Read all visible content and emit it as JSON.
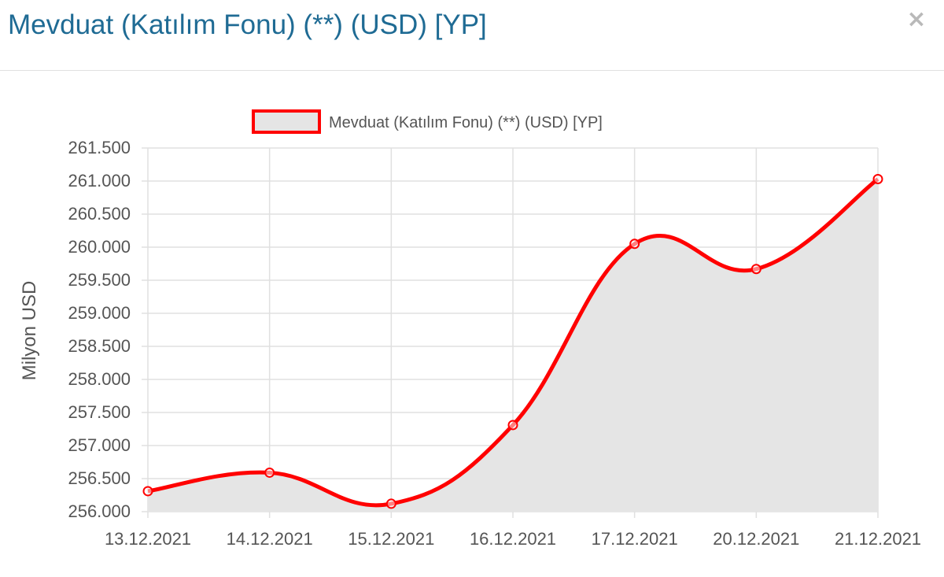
{
  "modal": {
    "title": "Mevduat (Katılım Fonu) (**) (USD) [YP]",
    "close_label": "×",
    "close_icon": "close-icon"
  },
  "colors": {
    "title": "#1f6b94",
    "line": "#ff0000",
    "fill": "#e5e5e5",
    "grid": "#e0e0e0",
    "axis_text": "#555555"
  },
  "chart_data": {
    "type": "area",
    "title": "",
    "ylabel": "Milyon USD",
    "xlabel": "",
    "categories": [
      "13.12.2021",
      "14.12.2021",
      "15.12.2021",
      "16.12.2021",
      "17.12.2021",
      "20.12.2021",
      "21.12.2021"
    ],
    "series": [
      {
        "name": "Mevduat (Katılım Fonu) (**) (USD) [YP]",
        "values": [
          256310,
          256590,
          256120,
          257310,
          260050,
          259670,
          261030
        ]
      }
    ],
    "ylim": [
      256000,
      261500
    ],
    "yticks": [
      256000,
      256500,
      257000,
      257500,
      258000,
      258500,
      259000,
      259500,
      260000,
      260500,
      261000,
      261500
    ],
    "ytick_labels": [
      "256.000",
      "256.500",
      "257.000",
      "257.500",
      "258.000",
      "258.500",
      "259.000",
      "259.500",
      "260.000",
      "260.500",
      "261.000",
      "261.500"
    ],
    "grid": true,
    "legend": "top-center",
    "smooth": true
  }
}
